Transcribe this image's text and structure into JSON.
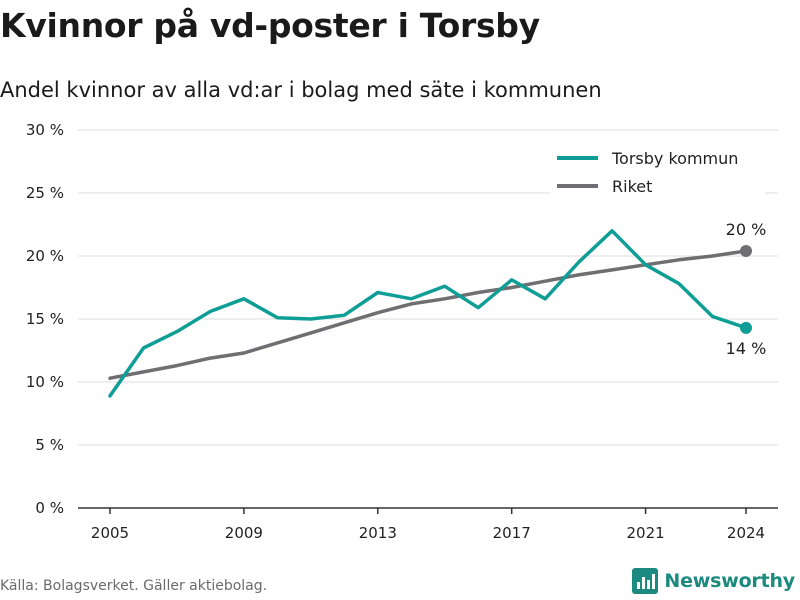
{
  "title": "Kvinnor på vd-poster i Torsby",
  "subtitle": "Andel kvinnor av alla vd:ar i bolag med säte i kommunen",
  "source": "Källa: Bolagsverket. Gäller aktiebolag.",
  "brand": {
    "name": "Newsworthy",
    "icon": "newsworthy-logo-icon",
    "color": "#1c8a7e"
  },
  "chart_data": {
    "type": "line",
    "title": "Kvinnor på vd-poster i Torsby",
    "subtitle": "Andel kvinnor av alla vd:ar i bolag med säte i kommunen",
    "x": [
      2005,
      2006,
      2007,
      2008,
      2009,
      2010,
      2011,
      2012,
      2013,
      2014,
      2015,
      2016,
      2017,
      2018,
      2019,
      2020,
      2021,
      2022,
      2023,
      2024
    ],
    "xticks": [
      2005,
      2009,
      2013,
      2017,
      2021,
      2024
    ],
    "xtick_labels": [
      "2005",
      "2009",
      "2013",
      "2017",
      "2021",
      "2024"
    ],
    "xlim": [
      2005,
      2024
    ],
    "ylim": [
      0,
      30
    ],
    "yticks": [
      0,
      5,
      10,
      15,
      20,
      25,
      30
    ],
    "ytick_labels": [
      "0 %",
      "5 %",
      "10 %",
      "15 %",
      "20 %",
      "25 %",
      "30 %"
    ],
    "yunit": "%",
    "grid": true,
    "legend": "top-right",
    "series": [
      {
        "name": "Torsby kommun",
        "color": "#0e9e96",
        "values": [
          8.9,
          12.7,
          14.0,
          15.6,
          16.6,
          15.1,
          15.0,
          15.3,
          17.1,
          16.6,
          17.6,
          15.9,
          18.1,
          16.6,
          19.5,
          22.0,
          19.3,
          17.8,
          15.2,
          14.3
        ],
        "end_label": "14 %"
      },
      {
        "name": "Riket",
        "color": "#6e6e73",
        "values": [
          10.3,
          10.8,
          11.3,
          11.9,
          12.3,
          13.1,
          13.9,
          14.7,
          15.5,
          16.2,
          16.6,
          17.1,
          17.5,
          18.0,
          18.5,
          18.9,
          19.3,
          19.7,
          20.0,
          20.4
        ],
        "end_label": "20 %"
      }
    ]
  }
}
